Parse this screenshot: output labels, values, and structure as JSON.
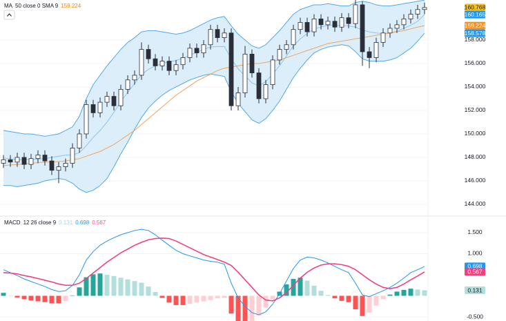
{
  "chart_data": [
    {
      "type": "candlestick",
      "legend": {
        "name": "MA",
        "params": "50 close 0 SMA 9",
        "value": 159.224,
        "value_color": "#e8860c"
      },
      "ylim": [
        143,
        161.41
      ],
      "yticks": [
        {
          "value": 144,
          "label": "144.000"
        },
        {
          "value": 146,
          "label": "146.000"
        },
        {
          "value": 148,
          "label": "148.000"
        },
        {
          "value": 150,
          "label": "150.000"
        },
        {
          "value": 152,
          "label": "152.000"
        },
        {
          "value": 154,
          "label": "154.000"
        },
        {
          "value": 156,
          "label": "156.000"
        },
        {
          "value": 158,
          "label": "158.000"
        }
      ],
      "grid": true,
      "up_color": "#ffffff",
      "down_color": "#2a2e39",
      "wick_color": "#2a2e39",
      "band_fill": "#ddeefb",
      "open": [
        147.5,
        147.8,
        147.6,
        148.0,
        147.4,
        147.9,
        148.2,
        147.7,
        146.9,
        147.2,
        147.5,
        148.8,
        150.0,
        152.5,
        151.8,
        152.7,
        153.2,
        152.4,
        153.8,
        154.6,
        155.0,
        157.2,
        156.4,
        155.8,
        156.2,
        155.4,
        155.9,
        156.5,
        157.3,
        156.9,
        157.6,
        158.9,
        158.2,
        158.6,
        152.4,
        153.5,
        156.8,
        155.2,
        153.0,
        154.2,
        156.3,
        157.2,
        157.6,
        158.9,
        159.5,
        158.7,
        159.8,
        159.3,
        159.6,
        159.1,
        159.9,
        159.4,
        161.0,
        157.0,
        156.5,
        157.8,
        158.6,
        159.0,
        159.3,
        159.8,
        160.2,
        160.6
      ],
      "high": [
        148.2,
        148.2,
        148.4,
        148.4,
        148.3,
        148.6,
        148.6,
        148.1,
        147.6,
        147.9,
        149.2,
        150.4,
        152.9,
        152.9,
        153.1,
        153.6,
        153.6,
        154.2,
        155.0,
        155.4,
        157.8,
        157.6,
        156.8,
        156.6,
        156.6,
        156.3,
        156.9,
        157.7,
        157.7,
        158.0,
        159.3,
        159.3,
        159.0,
        159.0,
        154.0,
        157.5,
        157.2,
        155.6,
        154.6,
        156.7,
        157.6,
        158.0,
        159.3,
        159.9,
        159.9,
        160.2,
        160.2,
        160.0,
        160.0,
        160.3,
        160.3,
        161.4,
        161.3,
        157.4,
        158.2,
        159.0,
        159.4,
        159.7,
        160.2,
        160.6,
        161.0,
        161.2
      ],
      "low": [
        147.1,
        147.2,
        147.2,
        147.0,
        147.0,
        147.5,
        147.3,
        146.5,
        145.8,
        146.8,
        147.1,
        148.4,
        149.6,
        151.4,
        151.4,
        152.3,
        152.0,
        152.0,
        153.4,
        154.2,
        154.6,
        156.0,
        155.4,
        155.4,
        155.0,
        155.0,
        155.5,
        156.1,
        156.5,
        156.5,
        157.2,
        157.8,
        157.8,
        152.0,
        152.0,
        153.1,
        154.8,
        152.6,
        152.6,
        153.8,
        155.9,
        156.8,
        157.2,
        158.5,
        158.3,
        158.3,
        158.9,
        158.9,
        158.7,
        158.7,
        159.0,
        159.0,
        155.8,
        155.6,
        156.1,
        157.4,
        158.2,
        158.6,
        158.9,
        159.4,
        159.8,
        160.2
      ],
      "close": [
        147.8,
        147.6,
        148.0,
        147.4,
        147.9,
        148.2,
        147.7,
        146.9,
        147.2,
        147.5,
        148.8,
        150.0,
        152.5,
        151.8,
        152.7,
        153.2,
        152.4,
        153.8,
        154.6,
        155.0,
        157.2,
        156.4,
        155.8,
        156.2,
        155.4,
        155.9,
        156.5,
        157.3,
        156.9,
        157.6,
        158.9,
        158.2,
        158.6,
        152.4,
        153.5,
        156.8,
        155.2,
        153.0,
        154.2,
        156.3,
        157.2,
        157.6,
        158.9,
        159.5,
        158.7,
        159.8,
        159.3,
        159.6,
        159.1,
        159.9,
        159.4,
        161.0,
        157.0,
        156.5,
        157.8,
        158.6,
        159.0,
        159.3,
        159.8,
        160.2,
        160.6,
        160.768
      ],
      "series": [
        {
          "color": "#4fa8ea",
          "values": [
            150.3,
            150.2,
            150.1,
            150.0,
            150.0,
            149.9,
            149.8,
            149.9,
            150.0,
            150.3,
            150.6,
            151.5,
            153.0,
            154.2,
            155.0,
            155.8,
            156.5,
            157.2,
            157.8,
            158.2,
            158.7,
            158.8,
            158.8,
            158.7,
            158.6,
            158.5,
            158.6,
            158.8,
            159.1,
            159.4,
            159.7,
            159.9,
            160.0,
            159.2,
            158.5,
            158.0,
            157.5,
            157.3,
            157.6,
            158.2,
            158.8,
            159.5,
            160.2,
            160.6,
            160.8,
            161.0,
            161.0,
            161.1,
            161.0,
            160.9,
            160.9,
            161.2,
            161.3,
            161.2,
            161.0,
            160.9,
            160.9,
            161.0,
            161.1,
            161.2,
            161.3,
            161.4
          ]
        },
        {
          "color": "#8cc4ee",
          "values": [
            147.95,
            147.9,
            147.8,
            147.8,
            147.85,
            147.85,
            147.9,
            148.0,
            148.1,
            148.2,
            148.2,
            148.4,
            149.0,
            149.7,
            150.3,
            151.0,
            151.85,
            152.75,
            153.55,
            154.3,
            155.05,
            155.5,
            155.8,
            156.0,
            156.15,
            156.25,
            156.45,
            156.7,
            156.95,
            157.2,
            157.4,
            157.45,
            157.45,
            156.4,
            155.55,
            154.95,
            154.35,
            154.1,
            154.45,
            155.1,
            155.8,
            156.65,
            157.5,
            158.1,
            158.55,
            158.95,
            159.1,
            159.25,
            159.25,
            159.25,
            159.2,
            159.1,
            158.85,
            158.7,
            158.6,
            158.55,
            158.6,
            158.75,
            159.0,
            159.25,
            159.6,
            160.165
          ]
        },
        {
          "color": "#4fa8ea",
          "values": [
            145.6,
            145.6,
            145.5,
            145.6,
            145.7,
            145.8,
            146.0,
            146.1,
            146.2,
            146.1,
            145.8,
            145.3,
            145.0,
            145.2,
            145.6,
            146.2,
            147.2,
            148.3,
            149.3,
            150.4,
            151.4,
            152.2,
            152.8,
            153.3,
            153.7,
            154.0,
            154.3,
            154.6,
            154.8,
            155.0,
            155.1,
            155.0,
            154.9,
            153.6,
            152.6,
            151.9,
            151.2,
            150.9,
            151.3,
            152.0,
            152.8,
            153.8,
            154.8,
            155.6,
            156.3,
            156.9,
            157.2,
            157.4,
            157.5,
            157.6,
            157.5,
            157.0,
            156.4,
            156.2,
            156.2,
            156.2,
            156.3,
            156.5,
            156.9,
            157.3,
            157.9,
            158.578
          ]
        },
        {
          "color": "#f0a35b",
          "values": [
            147.3,
            147.35,
            147.4,
            147.45,
            147.5,
            147.55,
            147.6,
            147.6,
            147.65,
            147.7,
            147.8,
            147.9,
            148.1,
            148.3,
            148.5,
            148.8,
            149.1,
            149.5,
            149.9,
            150.3,
            150.8,
            151.3,
            151.8,
            152.3,
            152.8,
            153.3,
            153.7,
            154.1,
            154.5,
            154.8,
            155.1,
            155.4,
            155.6,
            155.7,
            155.8,
            155.9,
            156.0,
            156.0,
            156.1,
            156.2,
            156.3,
            156.5,
            156.7,
            156.9,
            157.1,
            157.3,
            157.5,
            157.7,
            157.8,
            157.9,
            158.0,
            158.1,
            158.2,
            158.3,
            158.4,
            158.5,
            158.6,
            158.7,
            158.8,
            158.95,
            159.1,
            159.224
          ]
        }
      ],
      "price_tags": [
        {
          "value": 160.768,
          "color": "#f7c325",
          "text_color": "#131722"
        },
        {
          "value": 160.165,
          "color": "#2196f3",
          "text_color": "#ffffff"
        },
        {
          "value": 159.224,
          "color": "#f39325",
          "text_color": "#ffffff"
        },
        {
          "value": 158.578,
          "color": "#2196f3",
          "text_color": "#ffffff"
        }
      ]
    },
    {
      "type": "macd",
      "legend": {
        "name": "MACD",
        "params": "12 26 close 9",
        "values": [
          0.131,
          0.698,
          0.567
        ],
        "colors": [
          "#a5d8d3",
          "#2196f3",
          "#ff4d8a"
        ]
      },
      "ylim": [
        -0.598,
        1.893
      ],
      "yticks": [
        {
          "value": 1.5,
          "label": "1.500"
        },
        {
          "value": 1,
          "label": "1.000"
        },
        {
          "value": -0.5,
          "label": "-0.500"
        }
      ],
      "grid": true,
      "histogram": [
        0.07,
        0.01,
        -0.04,
        -0.08,
        -0.11,
        -0.13,
        -0.15,
        -0.18,
        -0.18,
        -0.13,
        0.0,
        0.2,
        0.44,
        0.51,
        0.53,
        0.5,
        0.47,
        0.43,
        0.39,
        0.35,
        0.31,
        0.22,
        0.09,
        -0.05,
        -0.16,
        -0.22,
        -0.22,
        -0.19,
        -0.16,
        -0.13,
        -0.1,
        -0.06,
        -0.05,
        -0.42,
        -0.61,
        -0.63,
        -0.6,
        -0.47,
        -0.28,
        -0.08,
        0.1,
        0.27,
        0.4,
        0.43,
        0.36,
        0.24,
        0.12,
        0.02,
        -0.06,
        -0.12,
        -0.15,
        -0.32,
        -0.48,
        -0.4,
        -0.23,
        -0.08,
        0.03,
        0.1,
        0.14,
        0.17,
        0.15,
        0.131
      ],
      "histogram_colors": {
        "pos_rising": "#26a69a",
        "pos_falling": "#b2dfdb",
        "neg_falling": "#ff5252",
        "neg_rising": "#ffcdd2"
      },
      "series": [
        {
          "color": "#2196f3",
          "values": [
            0.62,
            0.55,
            0.48,
            0.4,
            0.34,
            0.28,
            0.22,
            0.15,
            0.1,
            0.12,
            0.25,
            0.5,
            0.85,
            1.05,
            1.2,
            1.3,
            1.38,
            1.45,
            1.5,
            1.55,
            1.58,
            1.55,
            1.45,
            1.32,
            1.2,
            1.08,
            1.0,
            0.95,
            0.9,
            0.85,
            0.82,
            0.8,
            0.75,
            0.3,
            -0.05,
            -0.25,
            -0.4,
            -0.45,
            -0.38,
            -0.2,
            0.05,
            0.35,
            0.65,
            0.85,
            0.92,
            0.9,
            0.85,
            0.78,
            0.7,
            0.62,
            0.55,
            0.3,
            0.02,
            -0.02,
            0.05,
            0.12,
            0.2,
            0.3,
            0.42,
            0.55,
            0.62,
            0.698
          ]
        },
        {
          "color": "#f23f7f",
          "values": [
            0.55,
            0.54,
            0.52,
            0.48,
            0.45,
            0.41,
            0.37,
            0.33,
            0.28,
            0.25,
            0.25,
            0.3,
            0.41,
            0.54,
            0.67,
            0.8,
            0.91,
            1.02,
            1.11,
            1.2,
            1.27,
            1.33,
            1.36,
            1.37,
            1.36,
            1.3,
            1.22,
            1.14,
            1.06,
            0.98,
            0.92,
            0.86,
            0.8,
            0.72,
            0.56,
            0.38,
            0.2,
            0.02,
            -0.1,
            -0.12,
            -0.05,
            0.08,
            0.25,
            0.42,
            0.56,
            0.66,
            0.73,
            0.76,
            0.76,
            0.74,
            0.7,
            0.62,
            0.5,
            0.38,
            0.28,
            0.2,
            0.17,
            0.2,
            0.28,
            0.38,
            0.47,
            0.567
          ]
        }
      ],
      "price_tags": [
        {
          "value": 0.698,
          "color": "#2196f3",
          "text_color": "#ffffff"
        },
        {
          "value": 0.567,
          "color": "#f23f7f",
          "text_color": "#ffffff"
        },
        {
          "value": 0.131,
          "color": "#b2dfdb",
          "text_color": "#131722"
        }
      ]
    }
  ]
}
